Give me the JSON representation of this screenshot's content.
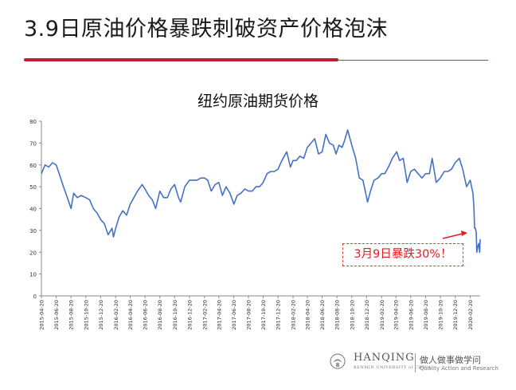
{
  "slide": {
    "title": "3.9日原油价格暴跌刺破资产价格泡沫"
  },
  "callout": {
    "text": "3月9日暴跌30%！"
  },
  "footer": {
    "brand": "HANQING",
    "brand_sub": "RENMIN UNIVERSITY of CHINA",
    "motto_cn": "做人做事做学问",
    "motto_en": "Quality Action and Research"
  },
  "colors": {
    "line": "#4472c4",
    "accent": "#b8202a",
    "callout": "#e31d1d"
  },
  "chart_data": {
    "type": "line",
    "title": "纽约原油期货价格",
    "xlabel": "",
    "ylabel": "",
    "ylim": [
      0,
      80
    ],
    "yticks": [
      0,
      10,
      20,
      30,
      40,
      50,
      60,
      70,
      80
    ],
    "grid": false,
    "x_tick_labels": [
      "2015-04-20",
      "2015-06-20",
      "2015-08-20",
      "2015-10-20",
      "2015-12-20",
      "2016-02-20",
      "2016-04-20",
      "2016-06-20",
      "2016-08-20",
      "2016-10-20",
      "2016-12-20",
      "2017-02-20",
      "2017-04-20",
      "2017-06-20",
      "2017-08-20",
      "2017-10-20",
      "2017-12-20",
      "2018-02-20",
      "2018-04-20",
      "2018-06-20",
      "2018-08-20",
      "2018-10-20",
      "2018-12-20",
      "2019-02-20",
      "2019-04-20",
      "2019-06-20",
      "2019-08-20",
      "2019-10-20",
      "2019-12-20",
      "2020-02-20"
    ],
    "x_range": [
      "2015-04-20",
      "2020-04-01"
    ],
    "series": [
      {
        "values": [
          [
            "2015-04-20",
            56
          ],
          [
            "2015-05-05",
            60
          ],
          [
            "2015-05-20",
            59
          ],
          [
            "2015-06-05",
            61
          ],
          [
            "2015-06-20",
            60
          ],
          [
            "2015-07-05",
            55
          ],
          [
            "2015-07-20",
            50
          ],
          [
            "2015-08-05",
            45
          ],
          [
            "2015-08-20",
            40
          ],
          [
            "2015-08-31",
            47
          ],
          [
            "2015-09-15",
            45
          ],
          [
            "2015-10-01",
            46
          ],
          [
            "2015-10-20",
            45
          ],
          [
            "2015-11-05",
            44
          ],
          [
            "2015-11-20",
            40
          ],
          [
            "2015-12-05",
            38
          ],
          [
            "2015-12-20",
            35
          ],
          [
            "2016-01-05",
            33
          ],
          [
            "2016-01-20",
            28
          ],
          [
            "2016-02-05",
            31
          ],
          [
            "2016-02-11",
            27
          ],
          [
            "2016-02-20",
            31
          ],
          [
            "2016-03-05",
            36
          ],
          [
            "2016-03-20",
            39
          ],
          [
            "2016-04-05",
            37
          ],
          [
            "2016-04-20",
            42
          ],
          [
            "2016-05-05",
            45
          ],
          [
            "2016-05-20",
            48
          ],
          [
            "2016-06-08",
            51
          ],
          [
            "2016-06-20",
            49
          ],
          [
            "2016-07-05",
            46
          ],
          [
            "2016-07-20",
            44
          ],
          [
            "2016-08-03",
            40
          ],
          [
            "2016-08-20",
            48
          ],
          [
            "2016-09-05",
            45
          ],
          [
            "2016-09-20",
            45
          ],
          [
            "2016-10-05",
            49
          ],
          [
            "2016-10-20",
            51
          ],
          [
            "2016-11-05",
            45
          ],
          [
            "2016-11-14",
            43
          ],
          [
            "2016-12-01",
            50
          ],
          [
            "2016-12-20",
            53
          ],
          [
            "2017-01-05",
            53
          ],
          [
            "2017-01-20",
            53
          ],
          [
            "2017-02-05",
            54
          ],
          [
            "2017-02-20",
            54
          ],
          [
            "2017-03-05",
            53
          ],
          [
            "2017-03-20",
            48
          ],
          [
            "2017-04-05",
            51
          ],
          [
            "2017-04-20",
            52
          ],
          [
            "2017-05-05",
            46
          ],
          [
            "2017-05-20",
            50
          ],
          [
            "2017-06-05",
            47
          ],
          [
            "2017-06-21",
            42
          ],
          [
            "2017-07-05",
            46
          ],
          [
            "2017-07-20",
            47
          ],
          [
            "2017-08-05",
            49
          ],
          [
            "2017-08-20",
            48
          ],
          [
            "2017-09-05",
            48
          ],
          [
            "2017-09-20",
            50
          ],
          [
            "2017-10-05",
            50
          ],
          [
            "2017-10-20",
            52
          ],
          [
            "2017-11-05",
            56
          ],
          [
            "2017-11-20",
            57
          ],
          [
            "2017-12-05",
            57
          ],
          [
            "2017-12-20",
            58
          ],
          [
            "2018-01-05",
            62
          ],
          [
            "2018-01-25",
            66
          ],
          [
            "2018-02-09",
            59
          ],
          [
            "2018-02-20",
            62
          ],
          [
            "2018-03-05",
            62
          ],
          [
            "2018-03-20",
            64
          ],
          [
            "2018-04-05",
            63
          ],
          [
            "2018-04-20",
            68
          ],
          [
            "2018-05-05",
            70
          ],
          [
            "2018-05-20",
            72
          ],
          [
            "2018-06-05",
            65
          ],
          [
            "2018-06-20",
            66
          ],
          [
            "2018-07-05",
            74
          ],
          [
            "2018-07-20",
            70
          ],
          [
            "2018-08-05",
            69
          ],
          [
            "2018-08-16",
            65
          ],
          [
            "2018-08-28",
            69
          ],
          [
            "2018-09-10",
            68
          ],
          [
            "2018-09-20",
            71
          ],
          [
            "2018-10-03",
            76
          ],
          [
            "2018-10-20",
            69
          ],
          [
            "2018-11-05",
            63
          ],
          [
            "2018-11-20",
            54
          ],
          [
            "2018-12-05",
            53
          ],
          [
            "2018-12-24",
            43
          ],
          [
            "2019-01-05",
            48
          ],
          [
            "2019-01-20",
            53
          ],
          [
            "2019-02-05",
            54
          ],
          [
            "2019-02-20",
            56
          ],
          [
            "2019-03-05",
            56
          ],
          [
            "2019-03-20",
            59
          ],
          [
            "2019-04-05",
            63
          ],
          [
            "2019-04-23",
            66
          ],
          [
            "2019-05-05",
            62
          ],
          [
            "2019-05-20",
            63
          ],
          [
            "2019-06-05",
            52
          ],
          [
            "2019-06-20",
            57
          ],
          [
            "2019-07-05",
            58
          ],
          [
            "2019-07-20",
            56
          ],
          [
            "2019-08-05",
            54
          ],
          [
            "2019-08-20",
            56
          ],
          [
            "2019-09-05",
            56
          ],
          [
            "2019-09-16",
            63
          ],
          [
            "2019-10-03",
            52
          ],
          [
            "2019-10-20",
            54
          ],
          [
            "2019-11-05",
            57
          ],
          [
            "2019-11-20",
            57
          ],
          [
            "2019-12-05",
            58
          ],
          [
            "2019-12-20",
            61
          ],
          [
            "2020-01-06",
            63
          ],
          [
            "2020-01-20",
            58
          ],
          [
            "2020-02-05",
            50
          ],
          [
            "2020-02-20",
            53
          ],
          [
            "2020-03-02",
            47
          ],
          [
            "2020-03-06",
            41
          ],
          [
            "2020-03-09",
            31
          ],
          [
            "2020-03-12",
            31
          ],
          [
            "2020-03-16",
            29
          ],
          [
            "2020-03-18",
            20
          ],
          [
            "2020-03-23",
            23
          ],
          [
            "2020-03-26",
            24
          ],
          [
            "2020-03-30",
            20
          ],
          [
            "2020-04-01",
            26
          ]
        ]
      }
    ]
  }
}
